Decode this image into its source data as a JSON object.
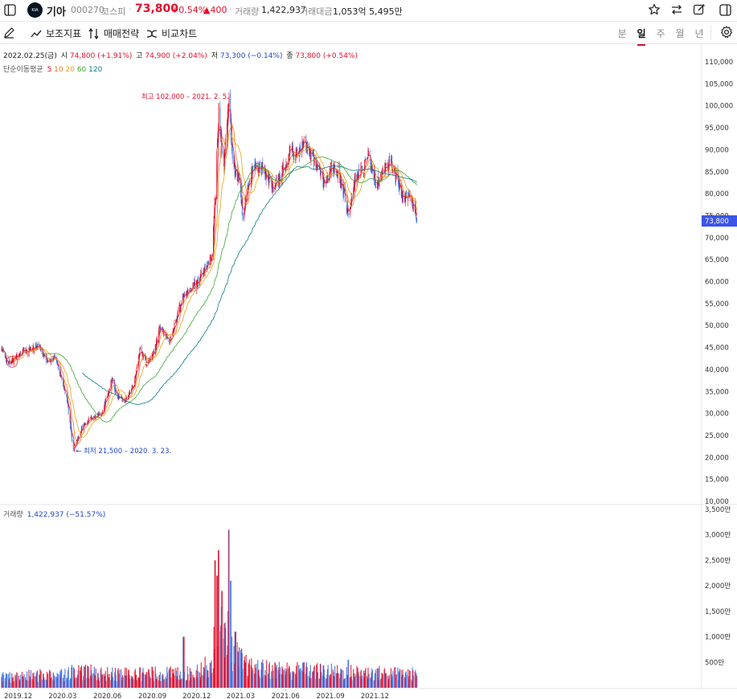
{
  "header": {
    "stock_name": "기아",
    "code": "000270",
    "market": "코스피",
    "price": "73,800",
    "change_pct": "+0.54%",
    "change_amt": "▲400",
    "volume_label": "거래량",
    "volume": "1,422,937",
    "amount_label": "거래대금",
    "amount": "1,053억 5,495만"
  },
  "toolbar": {
    "indicators": "보조지표",
    "strategy": "매매전략",
    "compare": "비교차트",
    "periods": [
      "분",
      "일",
      "주",
      "월",
      "년"
    ],
    "active_period": "일"
  },
  "ohlc_legend": {
    "date": "2022.02.25(금)",
    "open_label": "시",
    "open": "74,800 (+1.91%)",
    "high_label": "고",
    "high": "74,900 (+2.04%)",
    "low_label": "저",
    "low": "73,300 (−0.14%)",
    "close_label": "종",
    "close": "73,800 (+0.54%)"
  },
  "ma_legend": {
    "label": "단순이동평균",
    "periods": [
      {
        "text": "5",
        "color": "#e0112b"
      },
      {
        "text": "10",
        "color": "#f07a18"
      },
      {
        "text": "20",
        "color": "#e8a21a"
      },
      {
        "text": "60",
        "color": "#3fa535"
      },
      {
        "text": "120",
        "color": "#0c7a86"
      }
    ]
  },
  "volume_legend": {
    "label": "거래량",
    "value": "1,422,937 (−51.57%)"
  },
  "colors": {
    "up": "#e0112b",
    "down": "#3b6fe0",
    "ma5": "#e0112b",
    "ma10": "#f07a18",
    "ma20": "#e8a21a",
    "ma60": "#3fa535",
    "ma120": "#0c7a86",
    "current_tag": "#3b55e6"
  },
  "chart_data": {
    "type": "candlestick",
    "y_ticks": [
      "110,000",
      "105,000",
      "100,000",
      "95,000",
      "90,000",
      "85,000",
      "80,000",
      "75,000",
      "70,000",
      "65,000",
      "60,000",
      "55,000",
      "50,000",
      "45,000",
      "40,000",
      "35,000",
      "30,000",
      "25,000",
      "20,000",
      "15,000",
      "10,000"
    ],
    "ylim": [
      10000,
      110000
    ],
    "x_ticks": [
      "2019.12",
      "2020.03",
      "2020.06",
      "2020.09",
      "2020.12",
      "2021.03",
      "2021.06",
      "2021.09",
      "2021.12"
    ],
    "volume_ticks": [
      "3,500만",
      "3,000만",
      "2,500만",
      "2,000만",
      "1,500만",
      "1,000만",
      "500만"
    ],
    "volume_ylim": [
      0,
      35000000
    ],
    "current_price_label": "73,800",
    "current_price": 73800,
    "annotations": {
      "high": {
        "text": "최고 102,000 – 2021. 2. 5.",
        "value": 102000,
        "date": "2021-02-05"
      },
      "low": {
        "text": "← 최저 21,500 – 2020. 3. 23.",
        "value": 21500,
        "date": "2020-03-23"
      }
    },
    "price_path": [
      [
        "2019-10-28",
        45000
      ],
      [
        "2019-11-10",
        41000
      ],
      [
        "2019-12-01",
        43500
      ],
      [
        "2019-12-20",
        44000
      ],
      [
        "2020-01-10",
        45500
      ],
      [
        "2020-01-31",
        41500
      ],
      [
        "2020-02-14",
        43000
      ],
      [
        "2020-02-28",
        38000
      ],
      [
        "2020-03-10",
        33000
      ],
      [
        "2020-03-23",
        21500
      ],
      [
        "2020-04-10",
        27000
      ],
      [
        "2020-04-29",
        29000
      ],
      [
        "2020-05-20",
        30000
      ],
      [
        "2020-06-03",
        35000
      ],
      [
        "2020-06-10",
        38000
      ],
      [
        "2020-06-19",
        34000
      ],
      [
        "2020-07-07",
        33000
      ],
      [
        "2020-07-24",
        36000
      ],
      [
        "2020-08-07",
        45000
      ],
      [
        "2020-08-20",
        41000
      ],
      [
        "2020-09-04",
        44000
      ],
      [
        "2020-09-18",
        50000
      ],
      [
        "2020-10-07",
        46000
      ],
      [
        "2020-10-21",
        52000
      ],
      [
        "2020-11-04",
        57000
      ],
      [
        "2020-11-20",
        58500
      ],
      [
        "2020-12-04",
        60000
      ],
      [
        "2020-12-18",
        63000
      ],
      [
        "2020-12-31",
        65000
      ],
      [
        "2021-01-08",
        80000
      ],
      [
        "2021-01-15",
        99000
      ],
      [
        "2021-01-25",
        85000
      ],
      [
        "2021-02-05",
        102000
      ],
      [
        "2021-02-12",
        87000
      ],
      [
        "2021-02-26",
        83000
      ],
      [
        "2021-03-05",
        75000
      ],
      [
        "2021-03-19",
        84000
      ],
      [
        "2021-04-08",
        87000
      ],
      [
        "2021-04-23",
        84000
      ],
      [
        "2021-05-07",
        81000
      ],
      [
        "2021-05-21",
        84000
      ],
      [
        "2021-06-11",
        90000
      ],
      [
        "2021-06-25",
        88000
      ],
      [
        "2021-07-09",
        92000
      ],
      [
        "2021-07-23",
        89000
      ],
      [
        "2021-08-06",
        86000
      ],
      [
        "2021-08-20",
        82000
      ],
      [
        "2021-09-03",
        86000
      ],
      [
        "2021-09-17",
        85000
      ],
      [
        "2021-10-08",
        76000
      ],
      [
        "2021-10-22",
        84000
      ],
      [
        "2021-11-05",
        85000
      ],
      [
        "2021-11-19",
        89000
      ],
      [
        "2021-12-03",
        82000
      ],
      [
        "2021-12-17",
        85000
      ],
      [
        "2022-01-05",
        87000
      ],
      [
        "2022-01-21",
        82000
      ],
      [
        "2022-01-28",
        78000
      ],
      [
        "2022-02-10",
        80000
      ],
      [
        "2022-02-22",
        76000
      ],
      [
        "2022-02-25",
        73800
      ]
    ],
    "volume_profile": [
      [
        "2019-10-28",
        2000000
      ],
      [
        "2020-02-28",
        2600000
      ],
      [
        "2020-03-20",
        3300000
      ],
      [
        "2020-06-10",
        2600000
      ],
      [
        "2020-11-20",
        2800000
      ],
      [
        "2020-12-31",
        4500000
      ],
      [
        "2021-01-08",
        10000000
      ],
      [
        "2021-01-15",
        14000000
      ],
      [
        "2021-01-25",
        9000000
      ],
      [
        "2021-02-05",
        12000000
      ],
      [
        "2021-02-12",
        7000000
      ],
      [
        "2021-02-26",
        5500000
      ],
      [
        "2021-03-19",
        3800000
      ],
      [
        "2021-06-11",
        3400000
      ],
      [
        "2021-10-08",
        3000000
      ],
      [
        "2022-02-25",
        2600000
      ]
    ],
    "volume_spikes": [
      [
        "2020-03-23",
        4000000
      ],
      [
        "2020-08-07",
        4000000
      ],
      [
        "2020-11-04",
        10000000
      ],
      [
        "2021-01-08",
        25000000
      ],
      [
        "2021-01-11",
        22000000
      ],
      [
        "2021-01-15",
        27000000
      ],
      [
        "2021-01-22",
        19000000
      ],
      [
        "2021-02-05",
        31000000
      ],
      [
        "2021-02-08",
        21000000
      ],
      [
        "2021-02-18",
        11000000
      ],
      [
        "2021-07-09",
        5000000
      ],
      [
        "2021-10-08",
        5500000
      ]
    ]
  }
}
